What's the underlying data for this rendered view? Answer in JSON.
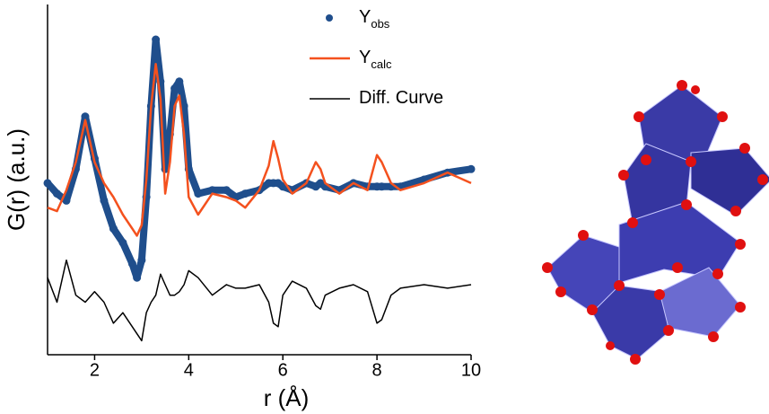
{
  "chart_data": {
    "type": "line",
    "x_label": "r (Å)",
    "y_label": "G(r) (a.u.)",
    "x": [
      1.0,
      1.2,
      1.4,
      1.6,
      1.8,
      2.0,
      2.2,
      2.4,
      2.6,
      2.8,
      2.9,
      3.0,
      3.1,
      3.2,
      3.3,
      3.4,
      3.5,
      3.6,
      3.7,
      3.8,
      3.9,
      4.0,
      4.2,
      4.5,
      4.8,
      5.0,
      5.2,
      5.5,
      5.7,
      5.8,
      5.9,
      6.0,
      6.2,
      6.5,
      6.7,
      6.8,
      6.9,
      7.2,
      7.5,
      7.8,
      8.0,
      8.1,
      8.3,
      8.5,
      9.0,
      9.5,
      10
    ],
    "series": [
      {
        "name": "Y",
        "subscript": "obs",
        "color": "#1f4e8c",
        "marker": "dot",
        "values": [
          49,
          46,
          44,
          53,
          68,
          56,
          44,
          36,
          32,
          26,
          22,
          27,
          45,
          71,
          90,
          78,
          53,
          63,
          76,
          78,
          71,
          53,
          46,
          47,
          47,
          45,
          46,
          47,
          49,
          49,
          49,
          48,
          47,
          49,
          48,
          49,
          48,
          47,
          49,
          48,
          48,
          48,
          48,
          48,
          50,
          52,
          53
        ]
      },
      {
        "name": "Y",
        "subscript": "calc",
        "color": "#f4511e",
        "marker": "line",
        "values": [
          42,
          41,
          47,
          55,
          67,
          55,
          49,
          45,
          40,
          36,
          34,
          37,
          50,
          71,
          83,
          73,
          46,
          55,
          71,
          74,
          63,
          45,
          40,
          46,
          45,
          44,
          42,
          47,
          54,
          61,
          56,
          50,
          46,
          49,
          55,
          53,
          49,
          46,
          49,
          47,
          57,
          55,
          49,
          47,
          49,
          52,
          49
        ]
      },
      {
        "name": "Diff. Curve",
        "color": "#000000",
        "marker": "line",
        "values": [
          22,
          15,
          27,
          17,
          15,
          18,
          15,
          9,
          12,
          8,
          6,
          4,
          12,
          15,
          17,
          23,
          20,
          17,
          17,
          18,
          20,
          24,
          22,
          17,
          20,
          19,
          19,
          20,
          15,
          9,
          8,
          17,
          21,
          19,
          14,
          13,
          17,
          19,
          20,
          18,
          9,
          10,
          17,
          19,
          20,
          19,
          20
        ]
      }
    ],
    "xlim": [
      1,
      10
    ],
    "xticks": [
      2,
      4,
      6,
      8,
      10
    ],
    "ylim": [
      0,
      100
    ]
  }
}
